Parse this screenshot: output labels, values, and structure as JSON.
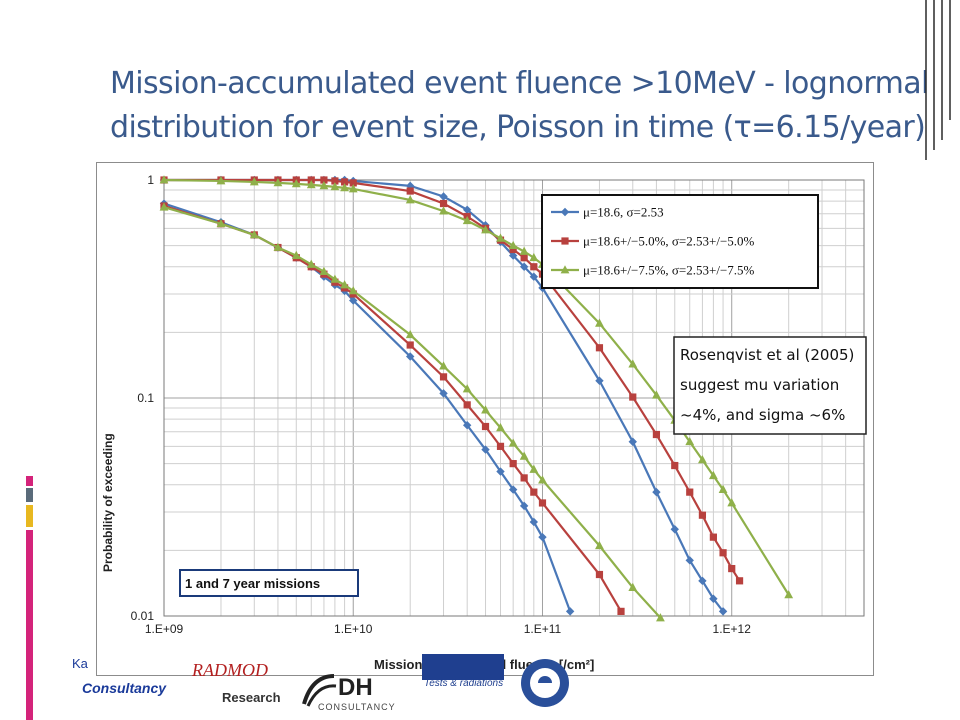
{
  "slide": {
    "title_line1": "Mission-accumulated event fluence >10MeV - lognormal",
    "title_line2": "distribution for event size, Poisson in time (τ=6.15/year)"
  },
  "colors": {
    "title": "#3a5a8c",
    "series_blue": "#4a78b8",
    "series_red": "#b8413e",
    "series_green": "#8fb04a",
    "accent_magenta": "#d4237a",
    "accent_gold": "#e8b820"
  },
  "annotation": {
    "line1": "Rosenqvist et al (2005)",
    "line2": "suggest mu variation",
    "line3": "~4%, and sigma ~6%"
  },
  "logos": {
    "consultancy": "Consultancy",
    "ka": "Ka",
    "research": "Research",
    "radmod": "RADMOD",
    "dh": "DH",
    "dh_sub": "CONSULTANCY",
    "trad_sub": "Tests & radiations"
  },
  "chart_data": {
    "type": "line",
    "title": "",
    "xlabel": "Mission-accumulated  fluence [/cm²]",
    "ylabel": "Probability  of exceeding",
    "x_scale": "log",
    "y_scale": "log",
    "xlim": [
      1000000000,
      5000000000000
    ],
    "ylim": [
      0.01,
      1
    ],
    "x_ticks": [
      {
        "value": 1000000000,
        "label": "1.E+09"
      },
      {
        "value": 10000000000,
        "label": "1.E+10"
      },
      {
        "value": 100000000000,
        "label": "1.E+11"
      },
      {
        "value": 1000000000000,
        "label": "1.E+12"
      }
    ],
    "y_ticks": [
      {
        "value": 1,
        "label": "1"
      },
      {
        "value": 0.1,
        "label": "0.1"
      },
      {
        "value": 0.01,
        "label": "0.01"
      }
    ],
    "grid": true,
    "legend_position": "top-right",
    "inset_label": "1 and 7 year missions",
    "series": [
      {
        "name": "μ=18.6, σ=2.53",
        "color": "#4a78b8",
        "marker": "diamond",
        "points": [
          [
            1000000000.0,
            0.78
          ],
          [
            2000000000.0,
            0.64
          ],
          [
            3000000000.0,
            0.56
          ],
          [
            4000000000.0,
            0.49
          ],
          [
            5000000000.0,
            0.44
          ],
          [
            6000000000.0,
            0.4
          ],
          [
            7000000000.0,
            0.36
          ],
          [
            8000000000.0,
            0.33
          ],
          [
            9000000000.0,
            0.31
          ],
          [
            10000000000.0,
            0.28
          ],
          [
            20000000000.0,
            0.155
          ],
          [
            30000000000.0,
            0.105
          ],
          [
            40000000000.0,
            0.075
          ],
          [
            50000000000.0,
            0.058
          ],
          [
            60000000000.0,
            0.046
          ],
          [
            70000000000.0,
            0.038
          ],
          [
            80000000000.0,
            0.032
          ],
          [
            90000000000.0,
            0.027
          ],
          [
            100000000000.0,
            0.023
          ],
          [
            140000000000.0,
            0.0105
          ]
        ]
      },
      {
        "name": "μ=18.6+/−5.0%, σ=2.53+/−5.0%",
        "color": "#b8413e",
        "marker": "square",
        "points": [
          [
            1000000000.0,
            0.76
          ],
          [
            2000000000.0,
            0.63
          ],
          [
            3000000000.0,
            0.56
          ],
          [
            4000000000.0,
            0.49
          ],
          [
            5000000000.0,
            0.44
          ],
          [
            6000000000.0,
            0.4
          ],
          [
            7000000000.0,
            0.37
          ],
          [
            8000000000.0,
            0.34
          ],
          [
            9000000000.0,
            0.32
          ],
          [
            10000000000.0,
            0.3
          ],
          [
            20000000000.0,
            0.175
          ],
          [
            30000000000.0,
            0.125
          ],
          [
            40000000000.0,
            0.093
          ],
          [
            50000000000.0,
            0.074
          ],
          [
            60000000000.0,
            0.06
          ],
          [
            70000000000.0,
            0.05
          ],
          [
            80000000000.0,
            0.043
          ],
          [
            90000000000.0,
            0.037
          ],
          [
            100000000000.0,
            0.033
          ],
          [
            200000000000.0,
            0.0155
          ],
          [
            260000000000.0,
            0.0105
          ]
        ]
      },
      {
        "name": "μ=18.6+/−7.5%, σ=2.53+/−7.5%",
        "color": "#8fb04a",
        "marker": "triangle",
        "points": [
          [
            1000000000.0,
            0.75
          ],
          [
            2000000000.0,
            0.63
          ],
          [
            3000000000.0,
            0.56
          ],
          [
            4000000000.0,
            0.49
          ],
          [
            5000000000.0,
            0.45
          ],
          [
            6000000000.0,
            0.41
          ],
          [
            7000000000.0,
            0.38
          ],
          [
            8000000000.0,
            0.35
          ],
          [
            9000000000.0,
            0.33
          ],
          [
            10000000000.0,
            0.31
          ],
          [
            20000000000.0,
            0.195
          ],
          [
            30000000000.0,
            0.14
          ],
          [
            40000000000.0,
            0.11
          ],
          [
            50000000000.0,
            0.088
          ],
          [
            60000000000.0,
            0.073
          ],
          [
            70000000000.0,
            0.062
          ],
          [
            80000000000.0,
            0.054
          ],
          [
            90000000000.0,
            0.047
          ],
          [
            100000000000.0,
            0.042
          ],
          [
            200000000000.0,
            0.021
          ],
          [
            300000000000.0,
            0.0135
          ],
          [
            420000000000.0,
            0.0098
          ]
        ]
      },
      {
        "name": "μ=18.6, σ=2.53",
        "color": "#4a78b8",
        "marker": "diamond",
        "show_in_legend": false,
        "points": [
          [
            1000000000.0,
            1.0
          ],
          [
            2000000000.0,
            1.0
          ],
          [
            3000000000.0,
            1.0
          ],
          [
            4000000000.0,
            1.0
          ],
          [
            5000000000.0,
            1.0
          ],
          [
            6000000000.0,
            1.0
          ],
          [
            7000000000.0,
            1.0
          ],
          [
            8000000000.0,
            1.0
          ],
          [
            9000000000.0,
            1.0
          ],
          [
            10000000000.0,
            0.99
          ],
          [
            20000000000.0,
            0.94
          ],
          [
            30000000000.0,
            0.84
          ],
          [
            40000000000.0,
            0.73
          ],
          [
            50000000000.0,
            0.62
          ],
          [
            60000000000.0,
            0.52
          ],
          [
            70000000000.0,
            0.45
          ],
          [
            80000000000.0,
            0.4
          ],
          [
            90000000000.0,
            0.36
          ],
          [
            100000000000.0,
            0.32
          ],
          [
            200000000000.0,
            0.12
          ],
          [
            300000000000.0,
            0.063
          ],
          [
            400000000000.0,
            0.037
          ],
          [
            500000000000.0,
            0.025
          ],
          [
            600000000000.0,
            0.018
          ],
          [
            700000000000.0,
            0.0145
          ],
          [
            800000000000.0,
            0.012
          ],
          [
            900000000000.0,
            0.0105
          ]
        ]
      },
      {
        "name": "μ=18.6+/−5.0%, σ=2.53+/−5.0%",
        "color": "#b8413e",
        "marker": "square",
        "show_in_legend": false,
        "points": [
          [
            1000000000.0,
            1.0
          ],
          [
            2000000000.0,
            1.0
          ],
          [
            3000000000.0,
            1.0
          ],
          [
            4000000000.0,
            1.0
          ],
          [
            5000000000.0,
            1.0
          ],
          [
            6000000000.0,
            1.0
          ],
          [
            7000000000.0,
            1.0
          ],
          [
            8000000000.0,
            0.99
          ],
          [
            9000000000.0,
            0.98
          ],
          [
            10000000000.0,
            0.97
          ],
          [
            20000000000.0,
            0.89
          ],
          [
            30000000000.0,
            0.78
          ],
          [
            40000000000.0,
            0.68
          ],
          [
            50000000000.0,
            0.6
          ],
          [
            60000000000.0,
            0.53
          ],
          [
            70000000000.0,
            0.48
          ],
          [
            80000000000.0,
            0.44
          ],
          [
            90000000000.0,
            0.4
          ],
          [
            100000000000.0,
            0.37
          ],
          [
            200000000000.0,
            0.17
          ],
          [
            300000000000.0,
            0.101
          ],
          [
            400000000000.0,
            0.068
          ],
          [
            500000000000.0,
            0.049
          ],
          [
            600000000000.0,
            0.037
          ],
          [
            700000000000.0,
            0.029
          ],
          [
            800000000000.0,
            0.023
          ],
          [
            900000000000.0,
            0.0195
          ],
          [
            1000000000000.0,
            0.0165
          ],
          [
            1100000000000.0,
            0.0145
          ]
        ]
      },
      {
        "name": "μ=18.6+/−7.5%, σ=2.53+/−7.5%",
        "color": "#8fb04a",
        "marker": "triangle",
        "show_in_legend": false,
        "points": [
          [
            1000000000.0,
            1.0
          ],
          [
            2000000000.0,
            0.99
          ],
          [
            3000000000.0,
            0.98
          ],
          [
            4000000000.0,
            0.97
          ],
          [
            5000000000.0,
            0.96
          ],
          [
            6000000000.0,
            0.95
          ],
          [
            7000000000.0,
            0.94
          ],
          [
            8000000000.0,
            0.93
          ],
          [
            9000000000.0,
            0.92
          ],
          [
            10000000000.0,
            0.91
          ],
          [
            20000000000.0,
            0.81
          ],
          [
            30000000000.0,
            0.72
          ],
          [
            40000000000.0,
            0.65
          ],
          [
            50000000000.0,
            0.59
          ],
          [
            60000000000.0,
            0.54
          ],
          [
            70000000000.0,
            0.5
          ],
          [
            80000000000.0,
            0.47
          ],
          [
            90000000000.0,
            0.44
          ],
          [
            100000000000.0,
            0.41
          ],
          [
            200000000000.0,
            0.22
          ],
          [
            300000000000.0,
            0.143
          ],
          [
            400000000000.0,
            0.103
          ],
          [
            500000000000.0,
            0.079
          ],
          [
            600000000000.0,
            0.063
          ],
          [
            700000000000.0,
            0.052
          ],
          [
            800000000000.0,
            0.044
          ],
          [
            900000000000.0,
            0.038
          ],
          [
            1000000000000.0,
            0.033
          ],
          [
            2000000000000.0,
            0.0125
          ]
        ]
      }
    ]
  }
}
